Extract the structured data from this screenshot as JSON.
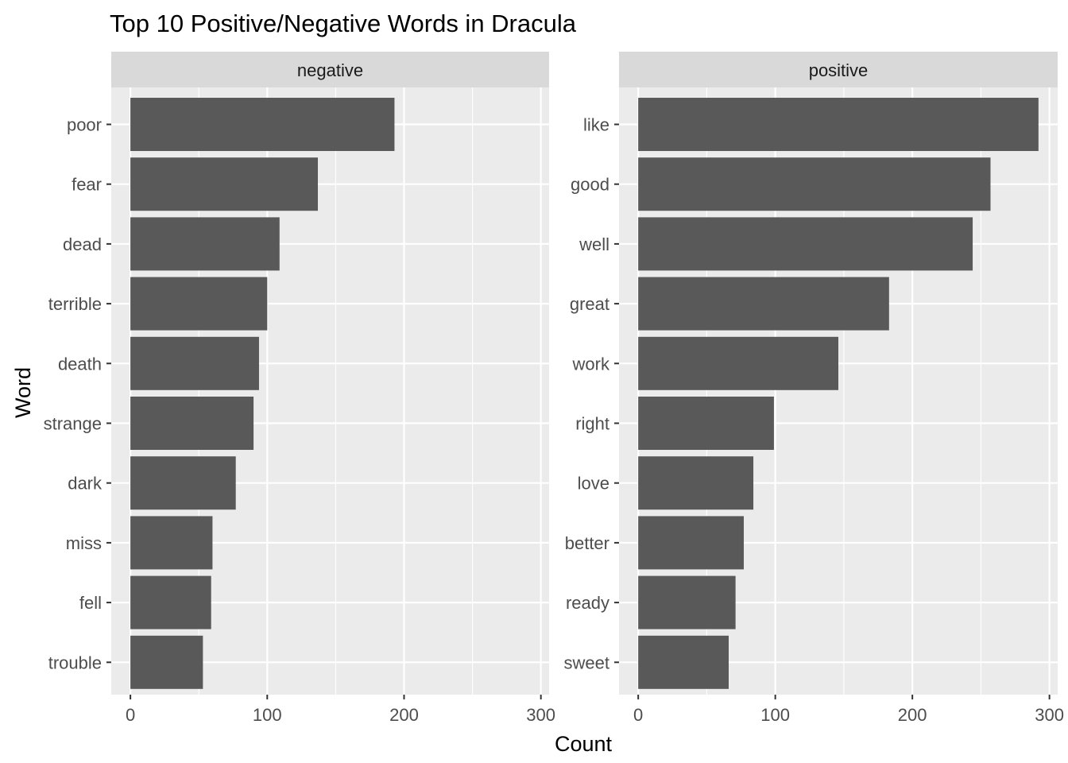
{
  "chart_data": {
    "type": "bar",
    "orientation": "horizontal",
    "title": "Top 10 Positive/Negative Words in Dracula",
    "xlabel": "Count",
    "ylabel": "Word",
    "xlim": [
      -14,
      306
    ],
    "xticks": [
      0,
      100,
      200,
      300
    ],
    "grid": true,
    "bar_color": "#595959",
    "panel_color": "#ebebeb",
    "strip_color": "#d9d9d9",
    "grid_color": "#ffffff",
    "facets": [
      {
        "name": "negative",
        "categories": [
          "poor",
          "fear",
          "dead",
          "terrible",
          "death",
          "strange",
          "dark",
          "miss",
          "fell",
          "trouble"
        ],
        "values": [
          193,
          137,
          109,
          100,
          94,
          90,
          77,
          60,
          59,
          53
        ]
      },
      {
        "name": "positive",
        "categories": [
          "like",
          "good",
          "well",
          "great",
          "work",
          "right",
          "love",
          "better",
          "ready",
          "sweet"
        ],
        "values": [
          292,
          257,
          244,
          183,
          146,
          99,
          84,
          77,
          71,
          66
        ]
      }
    ]
  }
}
